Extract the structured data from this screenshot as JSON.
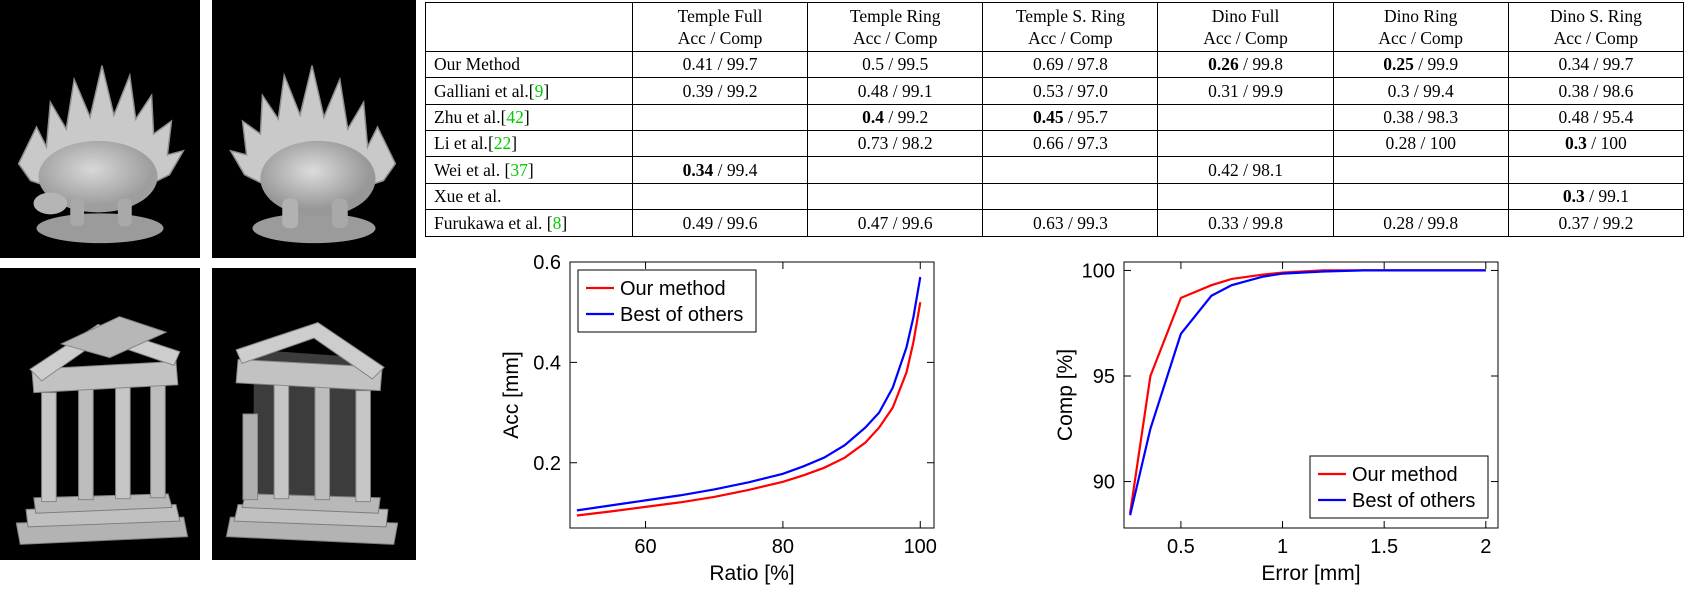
{
  "figure": {
    "renders": [
      {
        "name": "stegosaurus-reconstruction-front-view"
      },
      {
        "name": "stegosaurus-reconstruction-back-view"
      },
      {
        "name": "temple-reconstruction-view-1"
      },
      {
        "name": "temple-reconstruction-view-2"
      }
    ]
  },
  "table": {
    "cite_color": "#00cc00",
    "subheader": "Acc / Comp",
    "columns": [
      {
        "title": "Temple Full",
        "sub": "Acc / Comp"
      },
      {
        "title": "Temple Ring",
        "sub": "Acc / Comp"
      },
      {
        "title": "Temple S. Ring",
        "sub": "Acc / Comp"
      },
      {
        "title": "Dino Full",
        "sub": "Acc / Comp"
      },
      {
        "title": "Dino Ring",
        "sub": "Acc / Comp"
      },
      {
        "title": "Dino S. Ring",
        "sub": "Acc / Comp"
      }
    ],
    "rows": [
      {
        "method": "Our Method",
        "cite": null,
        "cells": [
          {
            "acc": "0.41",
            "comp": "99.7",
            "acc_bold": false
          },
          {
            "acc": "0.5",
            "comp": "99.5",
            "acc_bold": false
          },
          {
            "acc": "0.69",
            "comp": "97.8",
            "acc_bold": false
          },
          {
            "acc": "0.26",
            "comp": "99.8",
            "acc_bold": true
          },
          {
            "acc": "0.25",
            "comp": "99.9",
            "acc_bold": true
          },
          {
            "acc": "0.34",
            "comp": "99.7",
            "acc_bold": false
          }
        ]
      },
      {
        "method": "Galliani et al.",
        "cite": "9",
        "cells": [
          {
            "acc": "0.39",
            "comp": "99.2",
            "acc_bold": false
          },
          {
            "acc": "0.48",
            "comp": "99.1",
            "acc_bold": false
          },
          {
            "acc": "0.53",
            "comp": "97.0",
            "acc_bold": false
          },
          {
            "acc": "0.31",
            "comp": "99.9",
            "acc_bold": false
          },
          {
            "acc": "0.3",
            "comp": "99.4",
            "acc_bold": false
          },
          {
            "acc": "0.38",
            "comp": "98.6",
            "acc_bold": false
          }
        ]
      },
      {
        "method": "Zhu et al.",
        "cite": "42",
        "cells": [
          null,
          {
            "acc": "0.4",
            "comp": "99.2",
            "acc_bold": true
          },
          {
            "acc": "0.45",
            "comp": "95.7",
            "acc_bold": true
          },
          null,
          {
            "acc": "0.38",
            "comp": "98.3",
            "acc_bold": false
          },
          {
            "acc": "0.48",
            "comp": "95.4",
            "acc_bold": false
          }
        ]
      },
      {
        "method": "Li et al.",
        "cite": "22",
        "cells": [
          null,
          {
            "acc": "0.73",
            "comp": "98.2",
            "acc_bold": false
          },
          {
            "acc": "0.66",
            "comp": "97.3",
            "acc_bold": false
          },
          null,
          {
            "acc": "0.28",
            "comp": "100",
            "acc_bold": false
          },
          {
            "acc": "0.3",
            "comp": "100",
            "acc_bold": true
          }
        ]
      },
      {
        "method": "Wei et al. ",
        "cite": "37",
        "cells": [
          {
            "acc": "0.34",
            "comp": "99.4",
            "acc_bold": true
          },
          null,
          null,
          {
            "acc": "0.42",
            "comp": "98.1",
            "acc_bold": false
          },
          null,
          null
        ]
      },
      {
        "method": "Xue et al.",
        "cite": null,
        "cells": [
          null,
          null,
          null,
          null,
          null,
          {
            "acc": "0.3",
            "comp": "99.1",
            "acc_bold": true
          }
        ]
      },
      {
        "method": "Furukawa et al. ",
        "cite": "8",
        "cells": [
          {
            "acc": "0.49",
            "comp": "99.6",
            "acc_bold": false
          },
          {
            "acc": "0.47",
            "comp": "99.6",
            "acc_bold": false
          },
          {
            "acc": "0.63",
            "comp": "99.3",
            "acc_bold": false
          },
          {
            "acc": "0.33",
            "comp": "99.8",
            "acc_bold": false
          },
          {
            "acc": "0.28",
            "comp": "99.8",
            "acc_bold": false
          },
          {
            "acc": "0.37",
            "comp": "99.2",
            "acc_bold": false
          }
        ]
      }
    ]
  },
  "chart_data": [
    {
      "type": "line",
      "title": "",
      "xlabel": "Ratio [%]",
      "ylabel": "Acc [mm]",
      "xlim": [
        49,
        102
      ],
      "ylim": [
        0.07,
        0.6
      ],
      "xticks": [
        60,
        80,
        100
      ],
      "xtick_labels": [
        "60",
        "80",
        "100"
      ],
      "yticks": [
        0.2,
        0.4,
        0.6
      ],
      "ytick_labels": [
        "0.2",
        "0.4",
        "0.6"
      ],
      "grid": false,
      "legend_position": "top-left",
      "series": [
        {
          "name": "Our method",
          "color": "#ff0000",
          "x": [
            50,
            55,
            60,
            65,
            70,
            75,
            80,
            83,
            86,
            89,
            92,
            94,
            96,
            98,
            99,
            100
          ],
          "y": [
            0.095,
            0.103,
            0.112,
            0.121,
            0.132,
            0.146,
            0.162,
            0.175,
            0.19,
            0.21,
            0.24,
            0.27,
            0.31,
            0.38,
            0.44,
            0.52
          ]
        },
        {
          "name": "Best of others",
          "color": "#0000ff",
          "x": [
            50,
            55,
            60,
            65,
            70,
            75,
            80,
            83,
            86,
            89,
            92,
            94,
            96,
            98,
            99,
            100
          ],
          "y": [
            0.105,
            0.115,
            0.125,
            0.135,
            0.147,
            0.161,
            0.178,
            0.193,
            0.21,
            0.235,
            0.27,
            0.3,
            0.35,
            0.43,
            0.49,
            0.57
          ]
        }
      ]
    },
    {
      "type": "line",
      "title": "",
      "xlabel": "Error [mm]",
      "ylabel": "Comp [%]",
      "xlim": [
        0.22,
        2.06
      ],
      "ylim": [
        87.8,
        100.4
      ],
      "xticks": [
        0.5,
        1,
        1.5,
        2
      ],
      "xtick_labels": [
        "0.5",
        "1",
        "1.5",
        "2"
      ],
      "yticks": [
        90,
        95,
        100
      ],
      "ytick_labels": [
        "90",
        "95",
        "100"
      ],
      "grid": false,
      "legend_position": "bottom-right",
      "series": [
        {
          "name": "Our method",
          "color": "#ff0000",
          "x": [
            0.25,
            0.35,
            0.5,
            0.65,
            0.75,
            0.9,
            1.0,
            1.2,
            1.4,
            1.6,
            1.8,
            2.0
          ],
          "y": [
            88.5,
            95.0,
            98.7,
            99.3,
            99.6,
            99.8,
            99.9,
            100,
            100,
            100,
            100,
            100
          ]
        },
        {
          "name": "Best of others",
          "color": "#0000ff",
          "x": [
            0.25,
            0.35,
            0.5,
            0.65,
            0.75,
            0.9,
            1.0,
            1.2,
            1.4,
            1.6,
            1.8,
            2.0
          ],
          "y": [
            88.4,
            92.5,
            97.0,
            98.8,
            99.3,
            99.7,
            99.85,
            99.95,
            100,
            100,
            100,
            100
          ]
        }
      ]
    }
  ]
}
